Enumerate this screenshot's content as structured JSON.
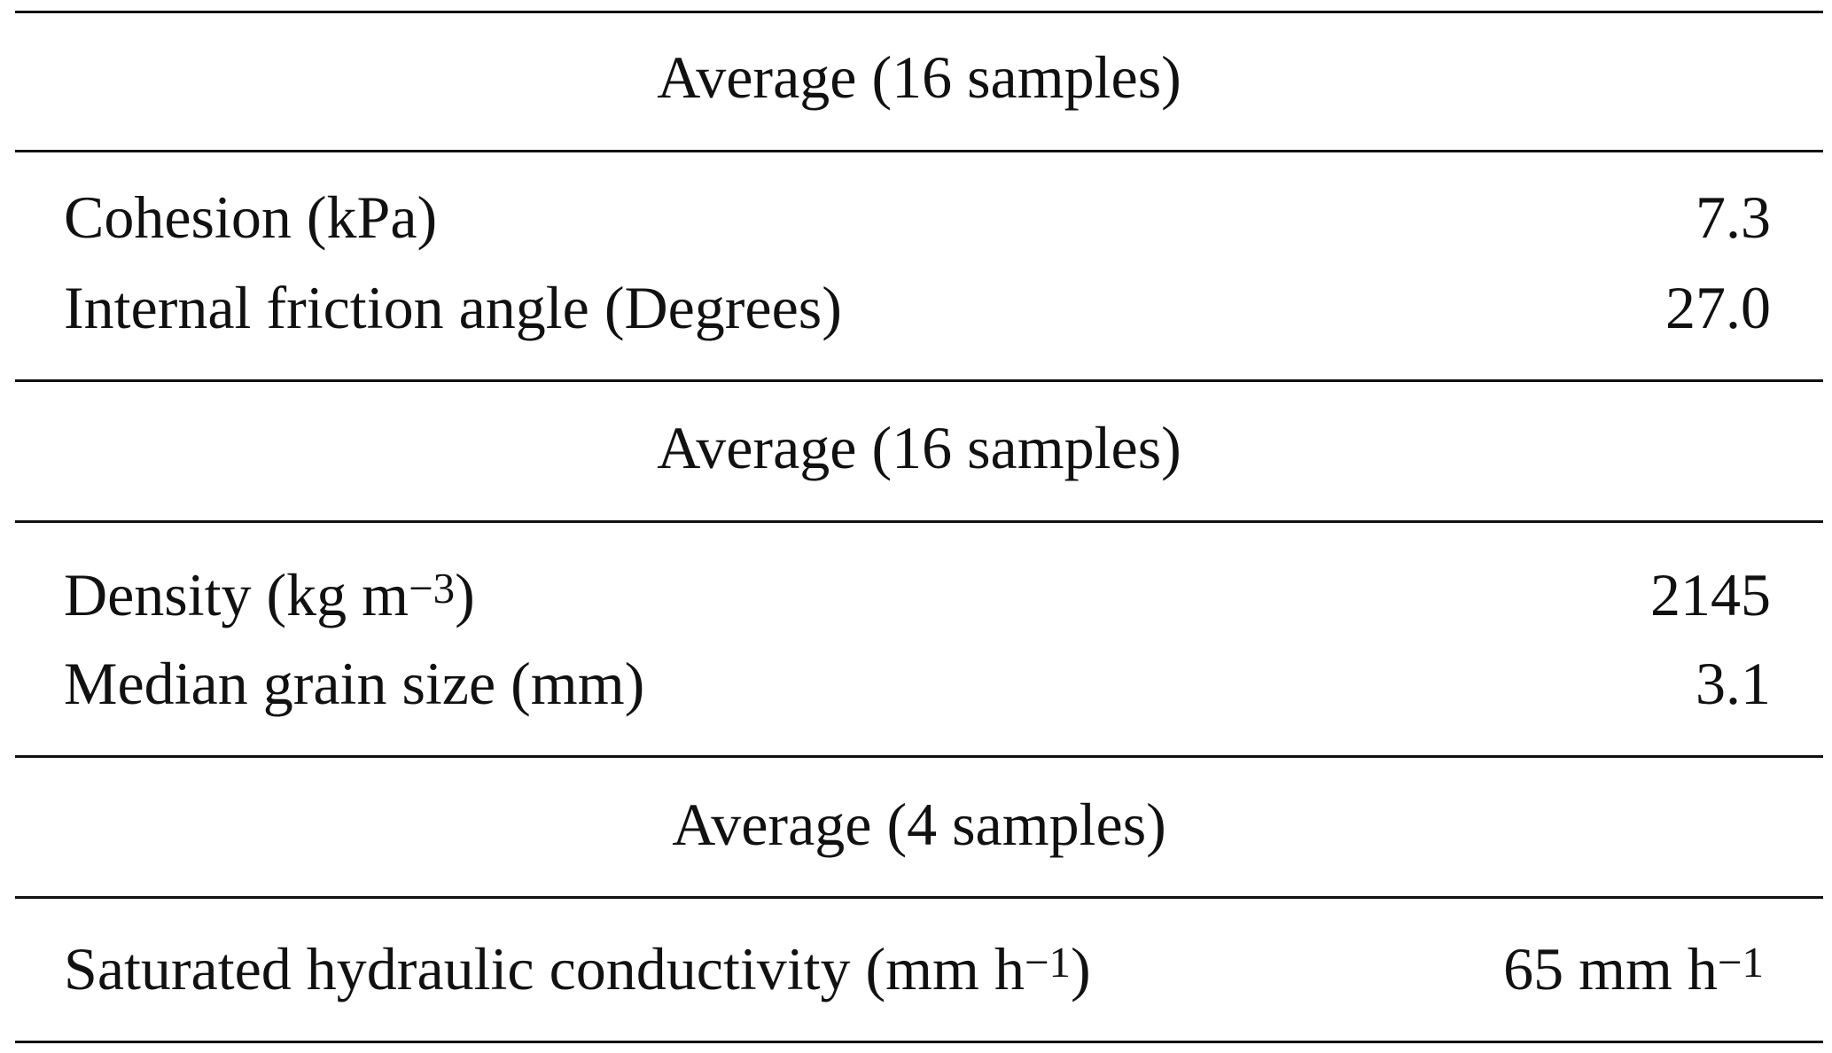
{
  "table": {
    "sections": [
      {
        "header": "Average (16 samples)",
        "rows": [
          {
            "label": "Cohesion (kPa)",
            "value": "7.3"
          },
          {
            "label": "Internal friction angle (Degrees)",
            "value": "27.0"
          }
        ]
      },
      {
        "header": "Average (16 samples)",
        "rows": [
          {
            "label_base": "Density (kg m",
            "label_sup": "−3",
            "label_close": ")",
            "value": "2145"
          },
          {
            "label": "Median grain size (mm)",
            "value": "3.1"
          }
        ]
      },
      {
        "header": "Average (4 samples)",
        "rows": [
          {
            "label_base": "Saturated hydraulic conductivity (mm h",
            "label_sup": "−1",
            "label_close": ")",
            "value_base": "65 mm h",
            "value_sup": "−1"
          }
        ]
      }
    ]
  }
}
